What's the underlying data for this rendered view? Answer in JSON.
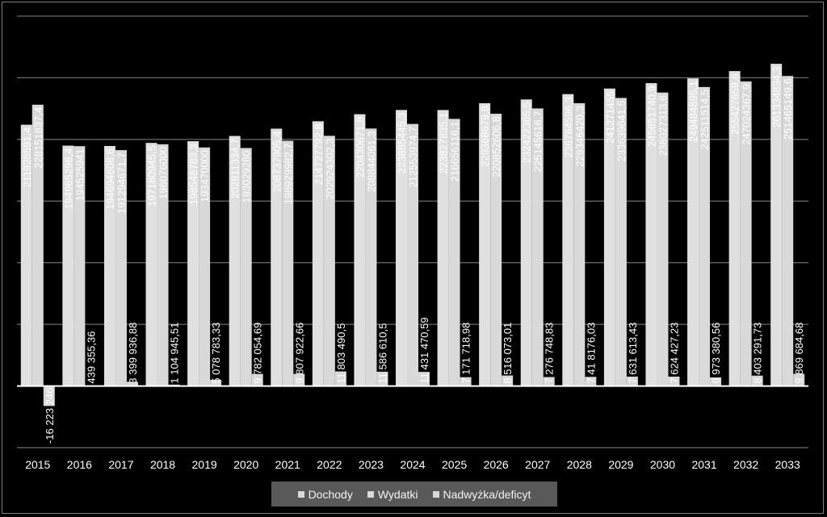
{
  "chart_data": {
    "type": "bar",
    "categories": [
      "2015",
      "2016",
      "2017",
      "2018",
      "2019",
      "2020",
      "2021",
      "2022",
      "2023",
      "2024",
      "2025",
      "2026",
      "2027",
      "2028",
      "2029",
      "2030",
      "2031",
      "2032",
      "2033"
    ],
    "series": [
      {
        "name": "Dochody",
        "values": [
          211928591.4,
          194965296.4,
          194694608.6,
          197180945.5,
          198548783.3,
          202811334.7,
          208737905.4,
          214727792.8,
          220430671.8,
          223885445.3,
          223827835.1,
          229368679.8,
          232422365.5,
          236764596.3,
          241271455,
          245651740.9,
          249484895.1,
          255427659.6,
          261334834.3
        ],
        "labels": [
          "211928591,4",
          "194965296,4",
          "194694608,6",
          "197180945,5",
          "198548783,3",
          "202811334,7",
          "208737905,4",
          "214727792,8",
          "220430671,8",
          "223885445,3",
          "223827835,1",
          "229368679,8",
          "232422365,5",
          "236764596,3",
          "241271455",
          "245651740,9",
          "249484895,1",
          "255427659,6",
          "261334834,3"
        ]
      },
      {
        "name": "Wydatki",
        "values": [
          228151837.4,
          194525941,
          191294671.7,
          196076000,
          193470000,
          193029280,
          198929982.7,
          202924302.3,
          208844061.3,
          212553974.7,
          216656116.1,
          220852606.8,
          225145616.7,
          229346420.3,
          233639841.5,
          238027313.6,
          242511514.5,
          247024367.9,
          251465149.6
        ],
        "labels": [
          "228151837,4",
          "194525941",
          "191294671,7",
          "196076000",
          "193470000",
          "193029280",
          "198929982,7",
          "202924302,3",
          "208844061,3",
          "212553974,7",
          "216656116,1",
          "220852606,8",
          "225145616,7",
          "229346420,3",
          "233639841,5",
          "238027313,6",
          "242511514,5",
          "247024367,9",
          "251465149,6"
        ]
      },
      {
        "name": "Nadwyżka/deficyt",
        "values": [
          -16223246,
          439355.36,
          3399936.88,
          1104945.51,
          5078783.33,
          9782054.69,
          9807922.66,
          11803490.5,
          11586610.5,
          11431470.59,
          7171718.98,
          8516073.01,
          7276748.83,
          7418176.03,
          7631613.43,
          7624427.23,
          6973380.56,
          8403291.73,
          9869684.68
        ],
        "labels": [
          "-16 223 246",
          "439 355,36",
          "3 399 936,88",
          "1 104 945,51",
          "5 078 783,33",
          "9 782 054,69",
          "9 807 922,66",
          "11 803 490,5",
          "11 586 610,5",
          "11 431 470,59",
          "7 171 718,98",
          "8 516 073,01",
          "7 276 748,83",
          "7 41 8176,03",
          "7 631 613,43",
          "7 624 427,23",
          "6 973 380,56",
          "8 403 291,73",
          "9 869 684,68"
        ]
      }
    ],
    "ylim": [
      -50000000,
      300000000
    ],
    "grid": true,
    "legend_position": "bottom",
    "colors": {
      "background": "#000000",
      "bar_dochody": "#e0e0e0",
      "bar_wydatki": "#d9d9d9",
      "bar_saldo": "#d9d9d9",
      "gridline": "#868686",
      "text": "#ffffff",
      "legend_bg": "#595959"
    }
  }
}
